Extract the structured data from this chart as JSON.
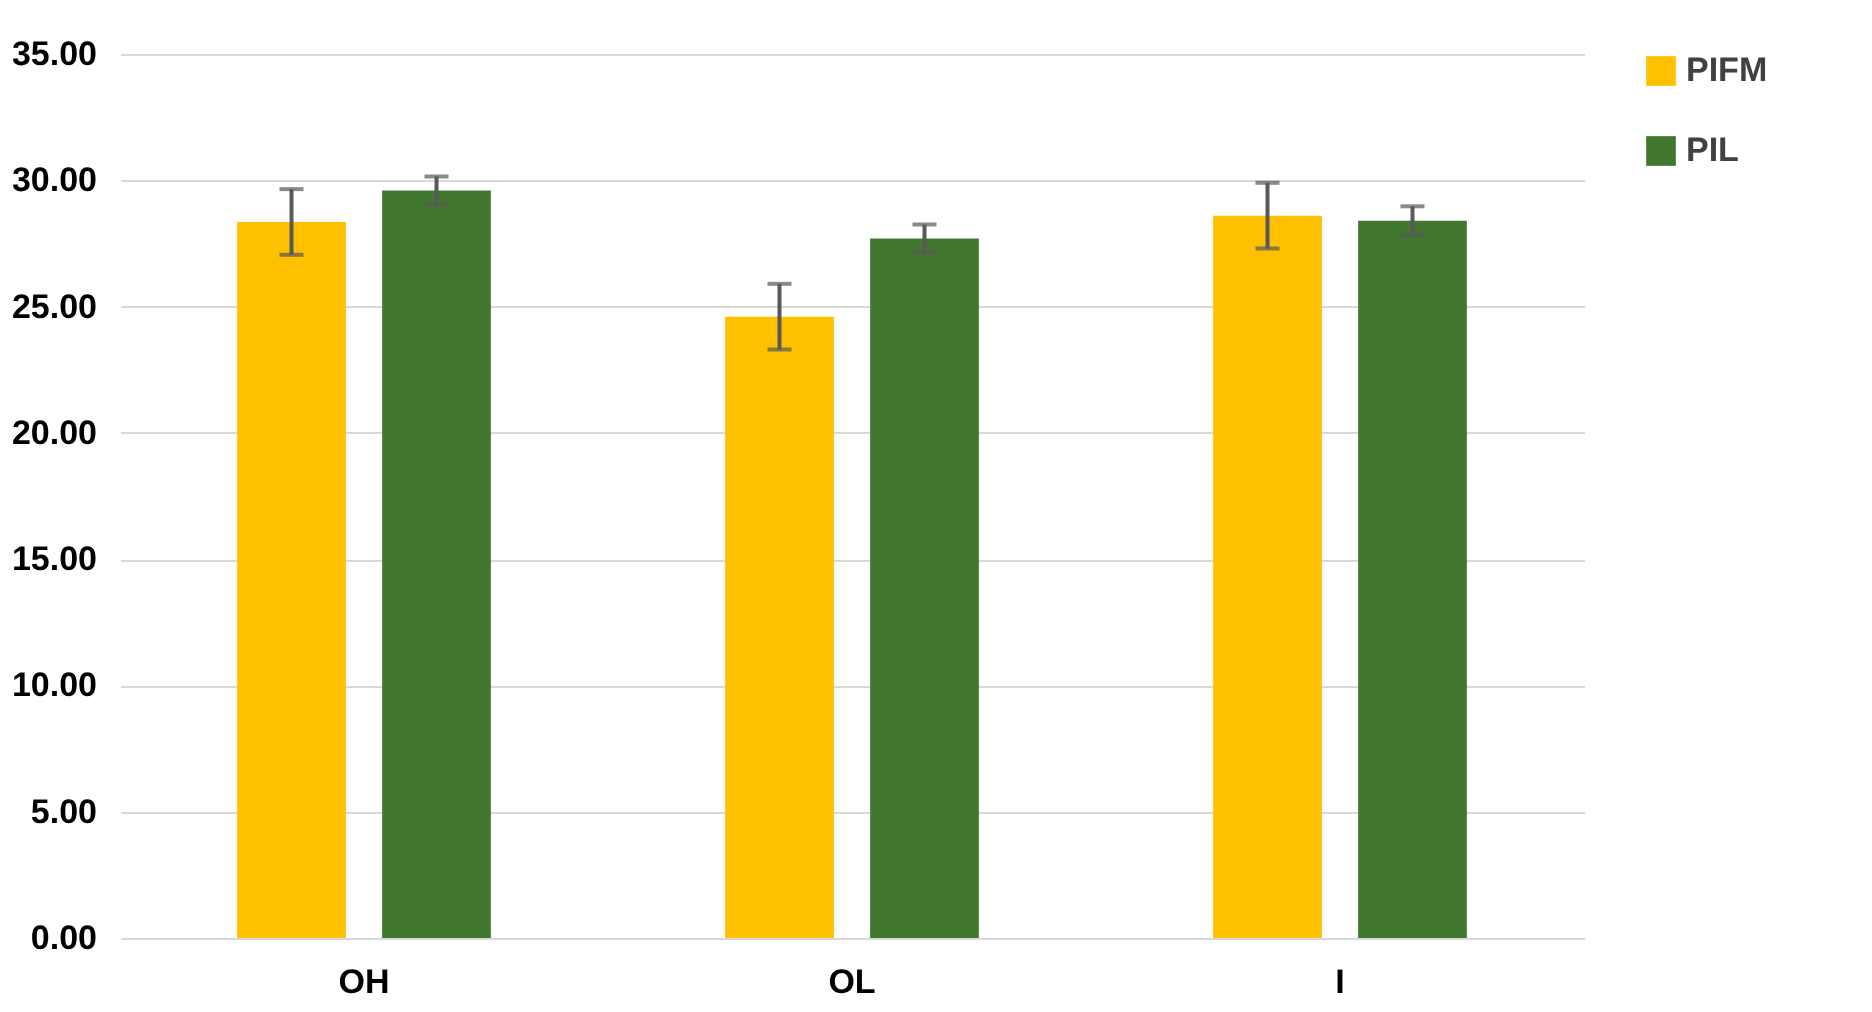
{
  "chart_data": {
    "type": "bar",
    "categories": [
      "OH",
      "OL",
      "I"
    ],
    "series": [
      {
        "name": "PIFM",
        "color": "#ffc000",
        "values": [
          28.35,
          24.6,
          28.6
        ],
        "errors": [
          1.3,
          1.3,
          1.3
        ]
      },
      {
        "name": "PIL",
        "color": "#41772f",
        "values": [
          29.6,
          27.7,
          28.4
        ],
        "errors": [
          0.55,
          0.55,
          0.57
        ]
      }
    ],
    "ylim": [
      0,
      35
    ],
    "yticks": [
      {
        "value": 0,
        "label": "0.00"
      },
      {
        "value": 5,
        "label": "5.00"
      },
      {
        "value": 10,
        "label": "10.00"
      },
      {
        "value": 15,
        "label": "15.00"
      },
      {
        "value": 20,
        "label": "20.00"
      },
      {
        "value": 25,
        "label": "25.00"
      },
      {
        "value": 30,
        "label": "30.00"
      },
      {
        "value": 35,
        "label": "35.00"
      }
    ],
    "grid": "y",
    "legend": "right"
  }
}
